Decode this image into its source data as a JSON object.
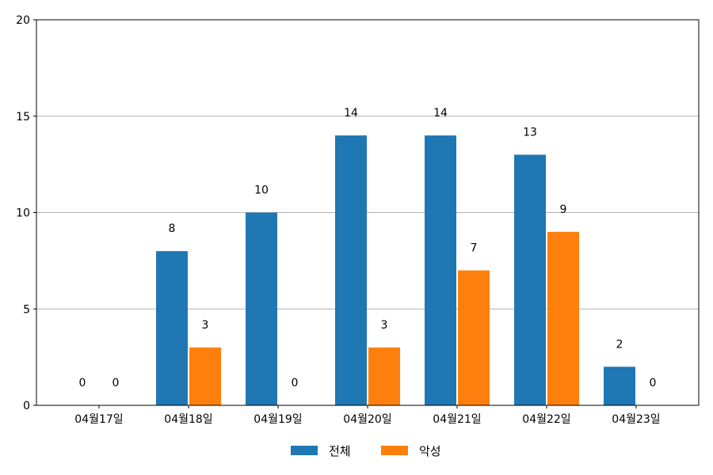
{
  "chart_data": {
    "type": "bar",
    "categories": [
      "04월17일",
      "04월18일",
      "04월19일",
      "04월20일",
      "04월21일",
      "04월22일",
      "04월23일"
    ],
    "series": [
      {
        "name": "전체",
        "color": "#1f77b4",
        "values": [
          0,
          8,
          10,
          14,
          14,
          13,
          2
        ]
      },
      {
        "name": "악성",
        "color": "#ff7f0e",
        "values": [
          0,
          3,
          0,
          3,
          7,
          9,
          0
        ]
      }
    ],
    "title": "",
    "xlabel": "",
    "ylabel": "",
    "ylim": [
      0,
      20
    ],
    "yticks": [
      0,
      5,
      10,
      15,
      20
    ],
    "grid": "horizontal",
    "legend_position": "bottom-center",
    "data_labels": true
  }
}
